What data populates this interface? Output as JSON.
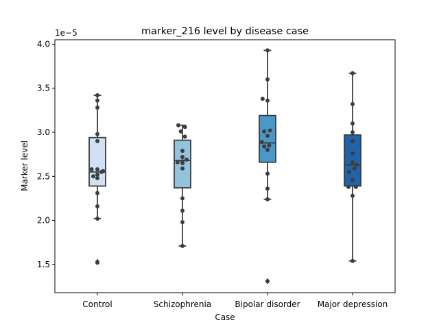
{
  "chart_data": {
    "type": "box",
    "title": "marker_216 level by disease case",
    "xlabel": "Case",
    "ylabel": "Marker level",
    "offset_text": "1e−5",
    "categories": [
      "Control",
      "Schizophrenia",
      "Bipolar disorder",
      "Major depression"
    ],
    "colors": [
      "#cfe1f2",
      "#93c4de",
      "#4a98c9",
      "#2163aa"
    ],
    "ylim": [
      1.18,
      4.05
    ],
    "yticks": [
      1.5,
      2.0,
      2.5,
      3.0,
      3.5,
      4.0
    ],
    "ytick_labels": [
      "1.5",
      "2.0",
      "2.5",
      "3.0",
      "3.5",
      "4.0"
    ],
    "boxes": [
      {
        "q1": 2.39,
        "median": 2.55,
        "q3": 2.94,
        "whisker_low": 2.02,
        "whisker_high": 3.42,
        "outliers": [
          1.53
        ]
      },
      {
        "q1": 2.37,
        "median": 2.68,
        "q3": 2.91,
        "whisker_low": 1.71,
        "whisker_high": 3.08,
        "outliers": []
      },
      {
        "q1": 2.66,
        "median": 2.88,
        "q3": 3.19,
        "whisker_low": 2.24,
        "whisker_high": 3.93,
        "outliers": [
          1.31
        ]
      },
      {
        "q1": 2.39,
        "median": 2.63,
        "q3": 2.97,
        "whisker_low": 1.54,
        "whisker_high": 3.67,
        "outliers": []
      }
    ],
    "points": [
      [
        [
          -0.07,
          2.58
        ],
        [
          0.0,
          2.58
        ],
        [
          0.07,
          2.56
        ],
        [
          -0.05,
          2.5
        ],
        [
          0.0,
          2.48
        ],
        [
          0.05,
          2.55
        ],
        [
          0.0,
          2.52
        ],
        [
          0.0,
          2.98
        ],
        [
          0.0,
          2.9
        ],
        [
          0.0,
          3.28
        ],
        [
          0.0,
          3.36
        ],
        [
          0.0,
          3.42
        ],
        [
          0.0,
          2.31
        ],
        [
          0.0,
          2.16
        ],
        [
          0.0,
          2.02
        ],
        [
          0.0,
          1.52
        ]
      ],
      [
        [
          -0.05,
          3.08
        ],
        [
          0.03,
          3.06
        ],
        [
          -0.02,
          3.01
        ],
        [
          0.03,
          2.95
        ],
        [
          0.0,
          2.79
        ],
        [
          0.0,
          2.72
        ],
        [
          0.05,
          2.69
        ],
        [
          -0.06,
          2.66
        ],
        [
          0.0,
          2.67
        ],
        [
          0.0,
          2.65
        ],
        [
          0.0,
          2.59
        ],
        [
          0.0,
          2.25
        ],
        [
          0.0,
          2.11
        ],
        [
          0.0,
          1.98
        ],
        [
          0.0,
          1.71
        ]
      ],
      [
        [
          0.0,
          3.93
        ],
        [
          0.0,
          3.6
        ],
        [
          -0.06,
          3.38
        ],
        [
          0.0,
          3.36
        ],
        [
          -0.04,
          3.01
        ],
        [
          0.03,
          3.02
        ],
        [
          0.0,
          2.96
        ],
        [
          -0.07,
          2.89
        ],
        [
          -0.04,
          2.84
        ],
        [
          0.02,
          2.85
        ],
        [
          0.0,
          2.8
        ],
        [
          0.0,
          2.53
        ],
        [
          0.0,
          2.36
        ],
        [
          0.0,
          2.24
        ],
        [
          0.0,
          1.31
        ]
      ],
      [
        [
          0.0,
          3.67
        ],
        [
          0.0,
          3.32
        ],
        [
          0.0,
          3.1
        ],
        [
          0.0,
          3.0
        ],
        [
          0.0,
          2.9
        ],
        [
          0.0,
          2.76
        ],
        [
          0.0,
          2.66
        ],
        [
          0.02,
          2.59
        ],
        [
          -0.04,
          2.55
        ],
        [
          0.05,
          2.63
        ],
        [
          0.0,
          2.46
        ],
        [
          -0.05,
          2.38
        ],
        [
          0.04,
          2.38
        ],
        [
          0.0,
          2.28
        ],
        [
          0.0,
          1.54
        ]
      ]
    ],
    "grid": false,
    "legend": "none"
  }
}
